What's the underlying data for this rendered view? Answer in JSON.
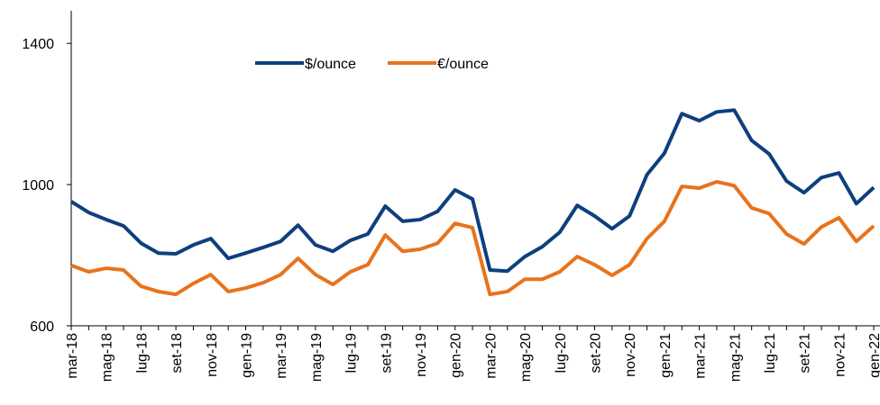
{
  "chart_data": {
    "type": "line",
    "categories": [
      "mar-18",
      null,
      "mag-18",
      null,
      "lug-18",
      null,
      "set-18",
      null,
      "nov-18",
      null,
      "gen-19",
      null,
      "mar-19",
      null,
      "mag-19",
      null,
      "lug-19",
      null,
      "set-19",
      null,
      "nov-19",
      null,
      "gen-20",
      null,
      "mar-20",
      null,
      "mag-20",
      null,
      "lug-20",
      null,
      "set-20",
      null,
      "nov-20",
      null,
      "gen-21",
      null,
      "mar-21",
      null,
      "mag-21",
      null,
      "lug-21",
      null,
      "set-21",
      null,
      "nov-21",
      null,
      "gen-22"
    ],
    "series": [
      {
        "name": "$/ounce",
        "color": "#0e3f7e",
        "values": [
          952,
          921,
          901,
          883,
          834,
          806,
          804,
          829,
          847,
          791,
          806,
          822,
          839,
          885,
          829,
          811,
          842,
          860,
          939,
          896,
          901,
          924,
          985,
          959,
          758,
          755,
          796,
          824,
          865,
          941,
          911,
          875,
          911,
          1028,
          1089,
          1201,
          1181,
          1206,
          1211,
          1125,
          1087,
          1010,
          977,
          1020,
          1033,
          946,
          992
        ]
      },
      {
        "name": "€/ounce",
        "color": "#e8731c",
        "values": [
          771,
          753,
          763,
          758,
          712,
          697,
          689,
          720,
          745,
          697,
          707,
          722,
          745,
          791,
          745,
          717,
          753,
          773,
          857,
          811,
          817,
          834,
          890,
          878,
          689,
          697,
          732,
          732,
          753,
          796,
          773,
          743,
          773,
          847,
          896,
          995,
          990,
          1008,
          997,
          934,
          918,
          860,
          832,
          880,
          906,
          839,
          883
        ]
      }
    ],
    "ylim": [
      600,
      1500
    ],
    "yticks": [
      600,
      1000,
      1400
    ],
    "legend": "top"
  }
}
